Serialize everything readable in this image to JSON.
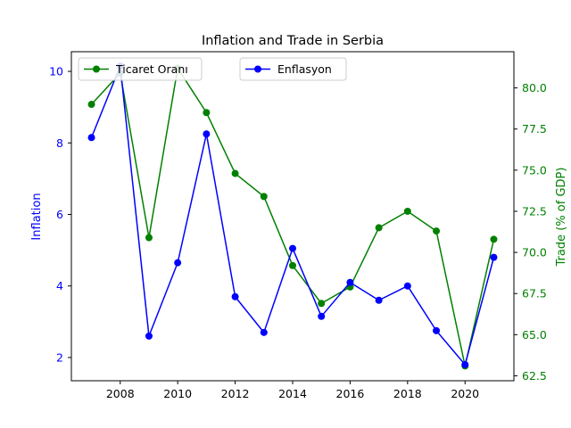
{
  "chart_data": {
    "type": "line",
    "title": "Inflation and Trade in Serbia",
    "x": [
      2007,
      2008,
      2009,
      2010,
      2011,
      2012,
      2013,
      2014,
      2015,
      2016,
      2017,
      2018,
      2019,
      2020,
      2021
    ],
    "xlim": [
      2006.3,
      2021.7
    ],
    "xticks": [
      2008,
      2010,
      2012,
      2014,
      2016,
      2018,
      2020
    ],
    "xtick_labels": [
      "2008",
      "2010",
      "2012",
      "2014",
      "2016",
      "2018",
      "2020"
    ],
    "left_axis": {
      "label": "Inflation",
      "color": "#0000ff",
      "ylim": [
        1.35,
        10.55
      ],
      "ticks": [
        2,
        4,
        6,
        8,
        10
      ],
      "tick_labels": [
        "2",
        "4",
        "6",
        "8",
        "10"
      ]
    },
    "right_axis": {
      "label": "Trade (% of GDP)",
      "color": "#008000",
      "ylim": [
        62.2,
        82.2
      ],
      "ticks": [
        62.5,
        65.0,
        67.5,
        70.0,
        72.5,
        75.0,
        77.5,
        80.0
      ],
      "tick_labels": [
        "62.5",
        "65.0",
        "67.5",
        "70.0",
        "72.5",
        "75.0",
        "77.5",
        "80.0"
      ]
    },
    "series": [
      {
        "name": "Enflasyon",
        "axis": "left",
        "color": "#0000ff",
        "values": [
          8.15,
          10.15,
          2.6,
          4.65,
          8.25,
          3.7,
          2.7,
          5.05,
          3.15,
          4.1,
          3.6,
          4.0,
          2.75,
          1.8,
          4.8
        ]
      },
      {
        "name": "Ticaret Oranı",
        "axis": "right",
        "color": "#008000",
        "values": [
          79.0,
          80.9,
          70.9,
          81.2,
          78.5,
          74.8,
          73.4,
          69.2,
          66.9,
          67.9,
          71.5,
          72.5,
          71.3,
          63.1,
          70.8
        ]
      }
    ],
    "legends": [
      {
        "label": "Ticaret Oranı",
        "series": 1,
        "placement": "upper-left"
      },
      {
        "label": "Enflasyon",
        "series": 0,
        "placement": "upper-center"
      }
    ]
  }
}
